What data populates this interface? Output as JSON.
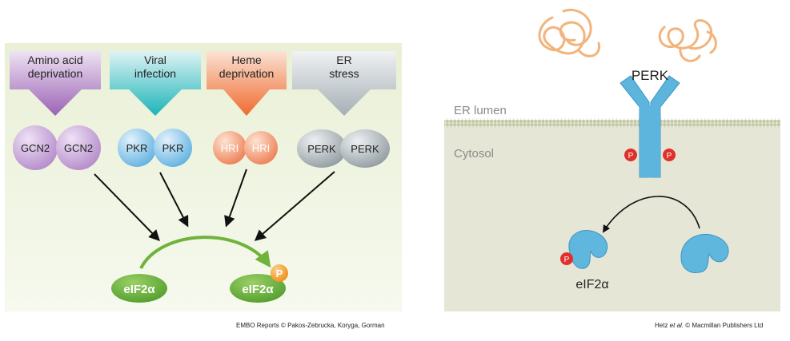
{
  "left_panel": {
    "stresses": [
      {
        "line1": "Amino acid",
        "line2": "deprivation",
        "kinase": "GCN2",
        "color": "#b087c6"
      },
      {
        "line1": "Viral",
        "line2": "infection",
        "kinase": "PKR",
        "color": "#2cbcc0"
      },
      {
        "line1": "Heme",
        "line2": "deprivation",
        "kinase": "HRI",
        "color": "#ee7a42"
      },
      {
        "line1": "ER",
        "line2": "stress",
        "kinase": "PERK",
        "color": "#9aa6ab"
      }
    ],
    "substrate": "eIF2α",
    "phospho_label": "P",
    "credit": "EMBO Reports © Pakos-Zebrucka, Koryga, Gorman"
  },
  "right_panel": {
    "lumen_label": "ER lumen",
    "cytosol_label": "Cytosol",
    "receptor_label": "PERK",
    "phospho_label": "P",
    "substrate_label": "eIF2α",
    "credit_pre": "Hetz ",
    "credit_em": "et al.",
    "credit_post": " © Macmillan Publishers Ltd"
  },
  "colors": {
    "panel_bg": "#eef4de",
    "cytosol_bg": "#e7e6d8",
    "green": "#6fb33b",
    "receptor_blue": "#5fb7de",
    "phospho_red": "#e0302c",
    "phospho_orange": "#f39a1e",
    "unfolded_protein": "#f2b47c"
  }
}
